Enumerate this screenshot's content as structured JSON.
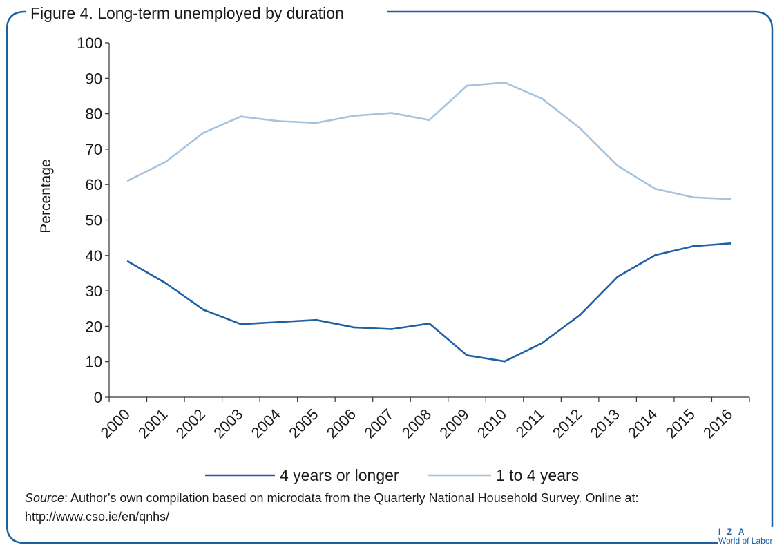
{
  "figure": {
    "title": "Figure 4. Long-term unemployed by duration",
    "source_label": "Source",
    "source_text": ": Author’s own compilation based on microdata from the Quarterly National Household Survey. Online at: http://www.cso.ie/en/qnhs/"
  },
  "logo": {
    "mark": "I Z A",
    "subtitle": "World of Labor"
  },
  "colors": {
    "frame": "#1f5fa3",
    "series_dark": "#1f5fa3",
    "series_light": "#a6c3de",
    "axis": "#333333"
  },
  "chart_data": {
    "type": "line",
    "title": "",
    "xlabel": "",
    "ylabel": "Percentage",
    "ylim": [
      0,
      100
    ],
    "yticks": [
      0,
      10,
      20,
      30,
      40,
      50,
      60,
      70,
      80,
      90,
      100
    ],
    "grid": false,
    "legend_position": "bottom",
    "categories": [
      "2000",
      "2001",
      "2002",
      "2003",
      "2004",
      "2005",
      "2006",
      "2007",
      "2008",
      "2009",
      "2010",
      "2011",
      "2012",
      "2013",
      "2014",
      "2015",
      "2016"
    ],
    "series": [
      {
        "name": "4 years or longer",
        "color": "#1f5fa3",
        "values": [
          38.3,
          32.2,
          24.7,
          20.6,
          21.2,
          21.8,
          19.7,
          19.2,
          20.8,
          11.8,
          10.1,
          15.3,
          23.2,
          34.0,
          40.1,
          42.6,
          43.4
        ]
      },
      {
        "name": "1 to 4 years",
        "color": "#a6c3de",
        "values": [
          61.1,
          66.4,
          74.6,
          79.2,
          77.9,
          77.4,
          79.4,
          80.2,
          78.2,
          87.9,
          88.8,
          84.2,
          75.9,
          65.3,
          58.8,
          56.4,
          55.9
        ]
      }
    ]
  }
}
